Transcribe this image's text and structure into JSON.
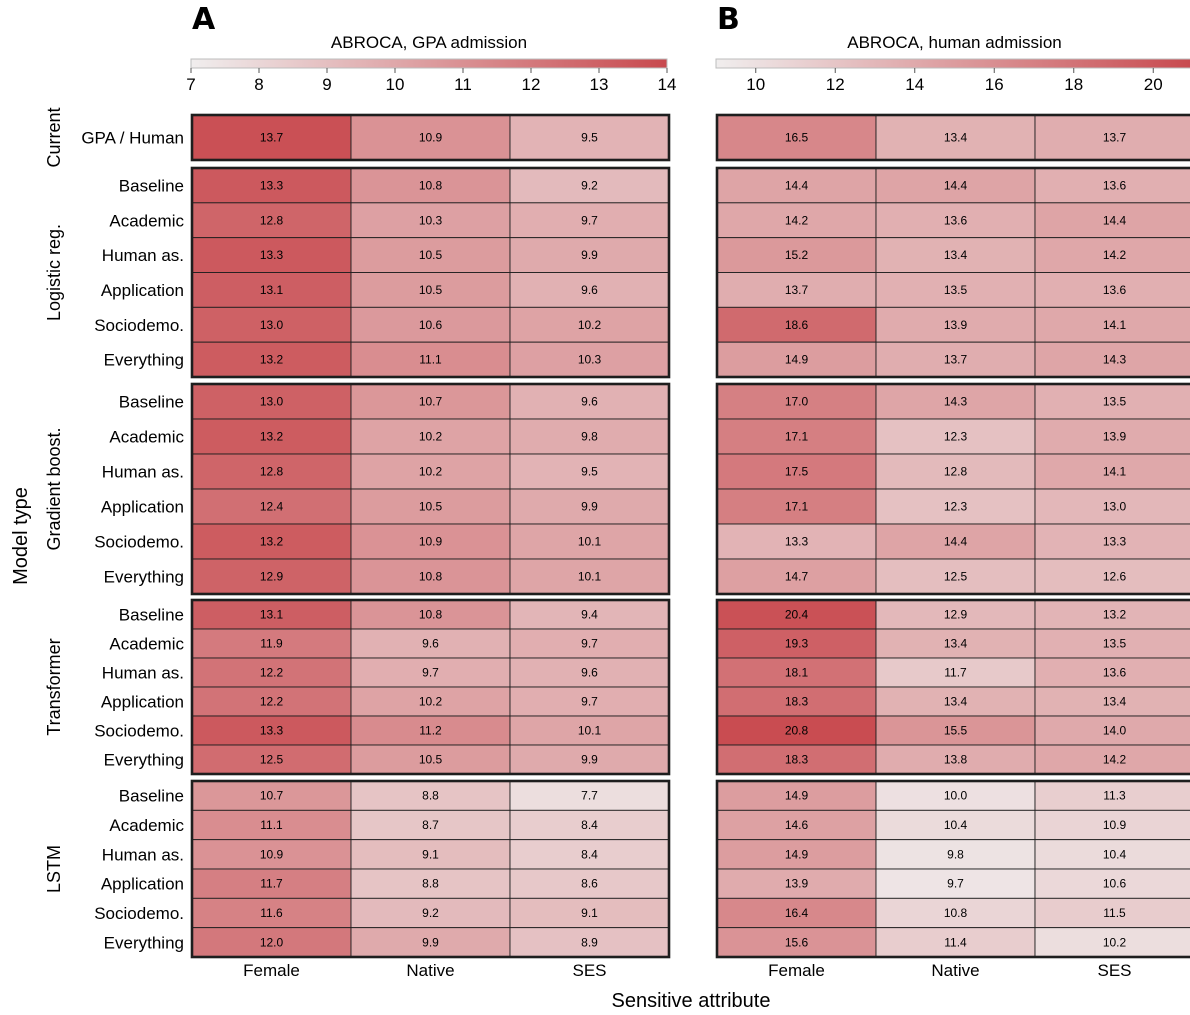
{
  "chart_data": {
    "type": "heatmap",
    "xlabel": "Sensitive attribute",
    "ylabel": "Model type",
    "columns": [
      "Female",
      "Native",
      "SES"
    ],
    "groups": [
      {
        "name": "Current",
        "rows": [
          "GPA / Human"
        ]
      },
      {
        "name": "Logistic reg.",
        "rows": [
          "Baseline",
          "Academic",
          "Human as.",
          "Application",
          "Sociodemo.",
          "Everything"
        ]
      },
      {
        "name": "Gradient boost.",
        "rows": [
          "Baseline",
          "Academic",
          "Human as.",
          "Application",
          "Sociodemo.",
          "Everything"
        ]
      },
      {
        "name": "Transformer",
        "rows": [
          "Baseline",
          "Academic",
          "Human as.",
          "Application",
          "Sociodemo.",
          "Everything"
        ]
      },
      {
        "name": "LSTM",
        "rows": [
          "Baseline",
          "Academic",
          "Human as.",
          "Application",
          "Sociodemo.",
          "Everything"
        ]
      }
    ],
    "panels": [
      {
        "letter": "A",
        "title": "ABROCA, GPA admission",
        "vmin": 7,
        "vmax": 14,
        "ticks": [
          "7",
          "8",
          "9",
          "10",
          "11",
          "12",
          "13",
          "14"
        ],
        "values": [
          [
            [
              13.7,
              10.9,
              9.5
            ]
          ],
          [
            [
              13.3,
              10.8,
              9.2
            ],
            [
              12.8,
              10.3,
              9.7
            ],
            [
              13.3,
              10.5,
              9.9
            ],
            [
              13.1,
              10.5,
              9.6
            ],
            [
              13.0,
              10.6,
              10.2
            ],
            [
              13.2,
              11.1,
              10.3
            ]
          ],
          [
            [
              13.0,
              10.7,
              9.6
            ],
            [
              13.2,
              10.2,
              9.8
            ],
            [
              12.8,
              10.2,
              9.5
            ],
            [
              12.4,
              10.5,
              9.9
            ],
            [
              13.2,
              10.9,
              10.1
            ],
            [
              12.9,
              10.8,
              10.1
            ]
          ],
          [
            [
              13.1,
              10.8,
              9.4
            ],
            [
              11.9,
              9.6,
              9.7
            ],
            [
              12.2,
              9.7,
              9.6
            ],
            [
              12.2,
              10.2,
              9.7
            ],
            [
              13.3,
              11.2,
              10.1
            ],
            [
              12.5,
              10.5,
              9.9
            ]
          ],
          [
            [
              10.7,
              8.8,
              7.7
            ],
            [
              11.1,
              8.7,
              8.4
            ],
            [
              10.9,
              9.1,
              8.4
            ],
            [
              11.7,
              8.8,
              8.6
            ],
            [
              11.6,
              9.2,
              9.1
            ],
            [
              12.0,
              9.9,
              8.9
            ]
          ]
        ]
      },
      {
        "letter": "B",
        "title": "ABROCA, human admission",
        "vmin": 9,
        "vmax": 21,
        "ticks": [
          "10",
          "12",
          "14",
          "16",
          "18",
          "20"
        ],
        "values": [
          [
            [
              16.5,
              13.4,
              13.7
            ]
          ],
          [
            [
              14.4,
              14.4,
              13.6
            ],
            [
              14.2,
              13.6,
              14.4
            ],
            [
              15.2,
              13.4,
              14.2
            ],
            [
              13.7,
              13.5,
              13.6
            ],
            [
              18.6,
              13.9,
              14.1
            ],
            [
              14.9,
              13.7,
              14.3
            ]
          ],
          [
            [
              17.0,
              14.3,
              13.5
            ],
            [
              17.1,
              12.3,
              13.9
            ],
            [
              17.5,
              12.8,
              14.1
            ],
            [
              17.1,
              12.3,
              13.0
            ],
            [
              13.3,
              14.4,
              13.3
            ],
            [
              14.7,
              12.5,
              12.6
            ]
          ],
          [
            [
              20.4,
              12.9,
              13.2
            ],
            [
              19.3,
              13.4,
              13.5
            ],
            [
              18.1,
              11.7,
              13.6
            ],
            [
              18.3,
              13.4,
              13.4
            ],
            [
              20.8,
              15.5,
              14.0
            ],
            [
              18.3,
              13.8,
              14.2
            ]
          ],
          [
            [
              14.9,
              10.0,
              11.3
            ],
            [
              14.6,
              10.4,
              10.9
            ],
            [
              14.9,
              9.8,
              10.4
            ],
            [
              13.9,
              9.7,
              10.6
            ],
            [
              16.4,
              10.8,
              11.5
            ],
            [
              15.6,
              11.4,
              10.2
            ]
          ]
        ]
      }
    ],
    "colormap": {
      "low": "#f0eeee",
      "high": "#c8494e"
    }
  }
}
